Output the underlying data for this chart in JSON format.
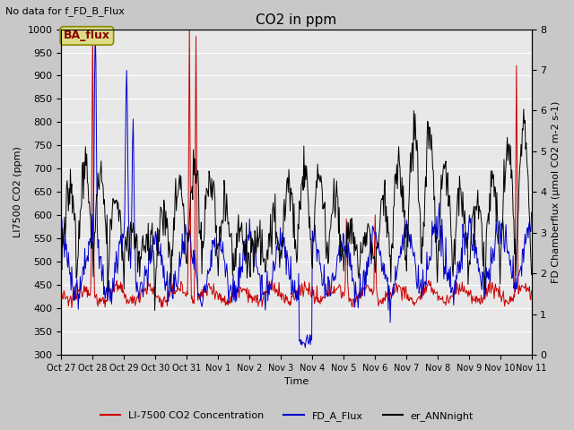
{
  "title": "CO2 in ppm",
  "top_left_text": "No data for f_FD_B_Flux",
  "annotation_text": "BA_flux",
  "xlabel": "Time",
  "ylabel_left": "LI7500 CO2 (ppm)",
  "ylabel_right": "FD Chamberflux (μmol CO2 m-2 s-1)",
  "ylim_left": [
    300,
    1000
  ],
  "ylim_right": [
    0.0,
    8.0
  ],
  "yticks_left": [
    300,
    350,
    400,
    450,
    500,
    550,
    600,
    650,
    700,
    750,
    800,
    850,
    900,
    950,
    1000
  ],
  "yticks_right": [
    0.0,
    1.0,
    2.0,
    3.0,
    4.0,
    5.0,
    6.0,
    7.0,
    8.0
  ],
  "xtick_labels": [
    "Oct 27",
    "Oct 28",
    "Oct 29",
    "Oct 30",
    "Oct 31",
    "Nov 1",
    "Nov 2",
    "Nov 3",
    "Nov 4",
    "Nov 5",
    "Nov 6",
    "Nov 7",
    "Nov 8",
    "Nov 9",
    "Nov 10",
    "Nov 11"
  ],
  "legend_labels": [
    "LI-7500 CO2 Concentration",
    "FD_A_Flux",
    "er_ANNnight"
  ],
  "legend_colors": [
    "#cc0000",
    "#0000cc",
    "#000000"
  ],
  "line_colors": {
    "red": "#cc0000",
    "blue": "#0000cc",
    "black": "#000000"
  },
  "fig_facecolor": "#c8c8c8",
  "plot_bg_color": "#e8e8e8",
  "grid_color": "#ffffff"
}
